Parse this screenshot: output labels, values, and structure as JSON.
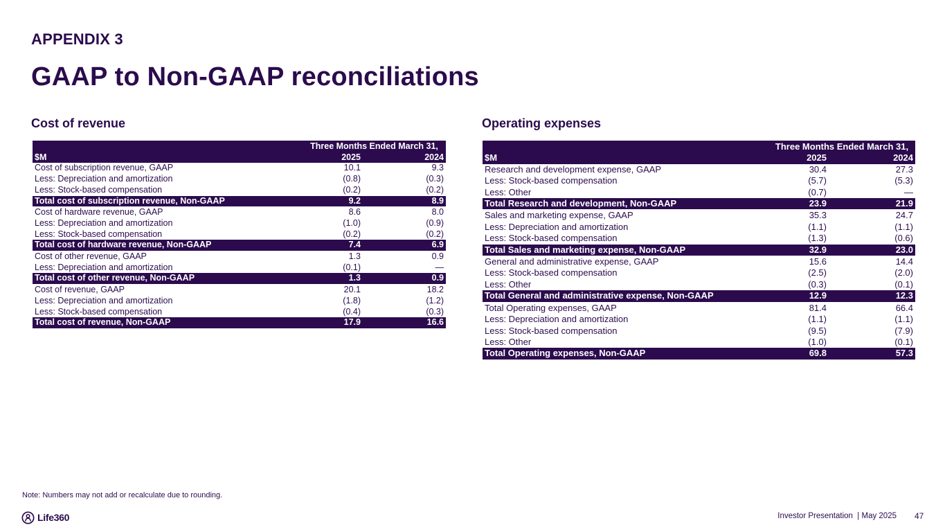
{
  "header": {
    "appendix": "APPENDIX 3",
    "title": "GAAP to Non-GAAP reconciliations"
  },
  "cost_of_revenue": {
    "section_title": "Cost of revenue",
    "period_label": "Three Months Ended March 31,",
    "unit_label": "$M",
    "col_2025": "2025",
    "col_2024": "2024",
    "rows": [
      {
        "label": "Cost of subscription revenue, GAAP",
        "v2025": "10.1",
        "v2024": "9.3",
        "total": false
      },
      {
        "label": "Less: Depreciation and amortization",
        "v2025": "(0.8)",
        "v2024": "(0.3)",
        "total": false
      },
      {
        "label": "Less: Stock-based compensation",
        "v2025": "(0.2)",
        "v2024": "(0.2)",
        "total": false
      },
      {
        "label": "Total cost of subscription revenue, Non-GAAP",
        "v2025": "9.2",
        "v2024": "8.9",
        "total": true
      },
      {
        "label": "Cost of hardware revenue, GAAP",
        "v2025": "8.6",
        "v2024": "8.0",
        "total": false
      },
      {
        "label": "Less: Depreciation and amortization",
        "v2025": "(1.0)",
        "v2024": "(0.9)",
        "total": false
      },
      {
        "label": "Less: Stock-based compensation",
        "v2025": "(0.2)",
        "v2024": "(0.2)",
        "total": false
      },
      {
        "label": "Total cost of hardware revenue, Non-GAAP",
        "v2025": "7.4",
        "v2024": "6.9",
        "total": true
      },
      {
        "label": "Cost of other revenue, GAAP",
        "v2025": "1.3",
        "v2024": "0.9",
        "total": false
      },
      {
        "label": "Less: Depreciation and amortization",
        "v2025": "(0.1)",
        "v2024": "—",
        "total": false
      },
      {
        "label": "Total cost of other revenue, Non-GAAP",
        "v2025": "1.3",
        "v2024": "0.9",
        "total": true
      },
      {
        "label": "Cost of revenue, GAAP",
        "v2025": "20.1",
        "v2024": "18.2",
        "total": false
      },
      {
        "label": "Less: Depreciation and amortization",
        "v2025": "(1.8)",
        "v2024": "(1.2)",
        "total": false
      },
      {
        "label": "Less: Stock-based compensation",
        "v2025": "(0.4)",
        "v2024": "(0.3)",
        "total": false
      },
      {
        "label": "Total cost of revenue, Non-GAAP",
        "v2025": "17.9",
        "v2024": "16.6",
        "total": true
      }
    ]
  },
  "operating_expenses": {
    "section_title": "Operating expenses",
    "period_label": "Three Months Ended March 31,",
    "unit_label": "$M",
    "col_2025": "2025",
    "col_2024": "2024",
    "rows": [
      {
        "label": "Research and development expense, GAAP",
        "v2025": "30.4",
        "v2024": "27.3",
        "total": false
      },
      {
        "label": "Less: Stock-based compensation",
        "v2025": "(5.7)",
        "v2024": "(5.3)",
        "total": false
      },
      {
        "label": "Less: Other",
        "v2025": "(0.7)",
        "v2024": "—",
        "total": false
      },
      {
        "label": "Total Research and development, Non-GAAP",
        "v2025": "23.9",
        "v2024": "21.9",
        "total": true
      },
      {
        "label": "Sales and marketing expense, GAAP",
        "v2025": "35.3",
        "v2024": "24.7",
        "total": false
      },
      {
        "label": "Less: Depreciation and amortization",
        "v2025": "(1.1)",
        "v2024": "(1.1)",
        "total": false
      },
      {
        "label": "Less: Stock-based compensation",
        "v2025": "(1.3)",
        "v2024": "(0.6)",
        "total": false
      },
      {
        "label": "Total Sales and marketing expense, Non-GAAP",
        "v2025": "32.9",
        "v2024": "23.0",
        "total": true
      },
      {
        "label": "General and administrative expense, GAAP",
        "v2025": "15.6",
        "v2024": "14.4",
        "total": false
      },
      {
        "label": "Less: Stock-based compensation",
        "v2025": "(2.5)",
        "v2024": "(2.0)",
        "total": false
      },
      {
        "label": "Less: Other",
        "v2025": "(0.3)",
        "v2024": "(0.1)",
        "total": false
      },
      {
        "label": "Total General and administrative expense, Non-GAAP",
        "v2025": "12.9",
        "v2024": "12.3",
        "total": true
      },
      {
        "label": "Total Operating expenses, GAAP",
        "v2025": "81.4",
        "v2024": "66.4",
        "total": false
      },
      {
        "label": "Less: Depreciation and amortization",
        "v2025": "(1.1)",
        "v2024": "(1.1)",
        "total": false
      },
      {
        "label": "Less: Stock-based compensation",
        "v2025": "(9.5)",
        "v2024": "(7.9)",
        "total": false
      },
      {
        "label": "Less: Other",
        "v2025": "(1.0)",
        "v2024": "(0.1)",
        "total": false
      },
      {
        "label": "Total Operating expenses, Non-GAAP",
        "v2025": "69.8",
        "v2024": "57.3",
        "total": true
      }
    ]
  },
  "footer": {
    "note": "Note: Numbers may not add or recalculate due to rounding.",
    "logo_text": "Life360",
    "logo_icon": "life360-logo-icon",
    "presentation": "Investor Presentation  | May 2025",
    "page_number": "47"
  },
  "colors": {
    "brand_dark": "#2b0b4d",
    "background": "#ffffff"
  }
}
